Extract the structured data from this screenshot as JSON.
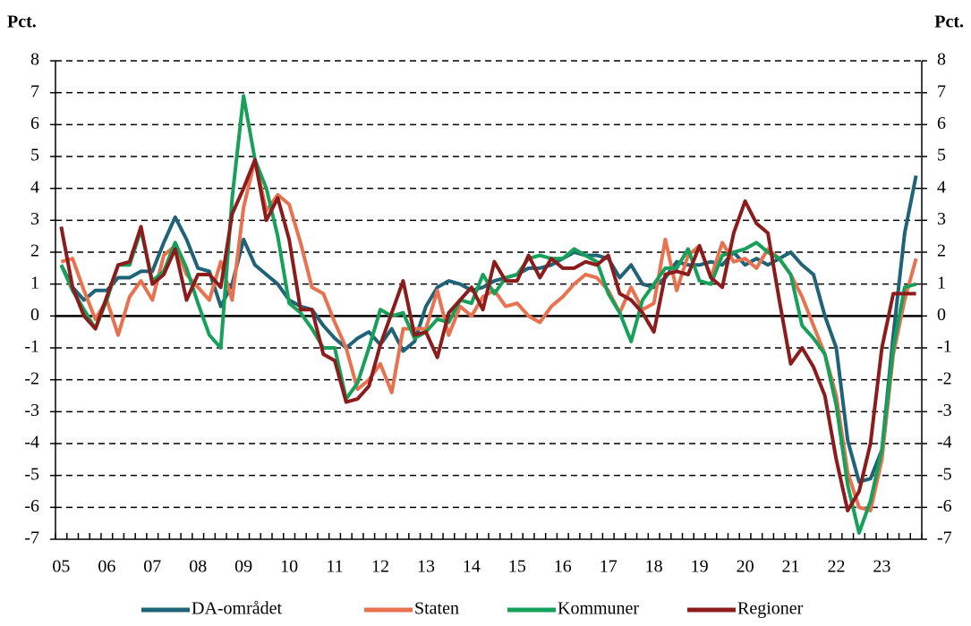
{
  "chart_data": {
    "type": "line",
    "ylabel": "Pct.",
    "y2label": "Pct.",
    "categories": [
      "05",
      null,
      null,
      null,
      "06",
      null,
      null,
      null,
      "07",
      null,
      null,
      null,
      "08",
      null,
      null,
      null,
      "09",
      null,
      null,
      null,
      "10",
      null,
      null,
      null,
      "11",
      null,
      null,
      null,
      "12",
      null,
      null,
      null,
      "13",
      null,
      null,
      null,
      "14",
      null,
      null,
      null,
      "15",
      null,
      null,
      null,
      "16",
      null,
      null,
      null,
      "17",
      null,
      null,
      null,
      "18",
      null,
      null,
      null,
      "19",
      null,
      null,
      null,
      "20",
      null,
      null,
      null,
      "21",
      null,
      null,
      null,
      "22",
      null,
      null,
      null,
      "23",
      null,
      null,
      null
    ],
    "series": [
      {
        "name": "DA-området",
        "color": "#1e6378",
        "values": [
          1.6,
          0.9,
          0.5,
          0.8,
          0.8,
          1.2,
          1.2,
          1.4,
          1.4,
          2.3,
          3.1,
          2.4,
          1.5,
          1.4,
          0.3,
          1.0,
          2.4,
          1.6,
          1.3,
          1.0,
          0.5,
          0.3,
          0.2,
          -0.3,
          -0.7,
          -1.0,
          -0.7,
          -0.5,
          -0.9,
          -0.4,
          -1.1,
          -0.8,
          0.3,
          0.9,
          1.1,
          1.0,
          0.8,
          0.9,
          1.1,
          1.2,
          1.3,
          1.5,
          1.5,
          1.6,
          1.8,
          2.0,
          1.9,
          1.9,
          1.8,
          1.2,
          1.6,
          1.0,
          0.9,
          1.2,
          1.7,
          1.6,
          1.6,
          1.7,
          1.6,
          2.0,
          1.6,
          1.8,
          1.6,
          1.8,
          2.0,
          1.6,
          1.3,
          0.0,
          -1.0,
          -3.9,
          -5.2,
          -5.1,
          -4.2,
          -0.6,
          2.6,
          4.4
        ]
      },
      {
        "name": "Staten",
        "color": "#e8714f",
        "values": [
          1.7,
          1.8,
          0.8,
          -0.1,
          0.5,
          -0.6,
          0.6,
          1.1,
          0.5,
          1.9,
          2.2,
          1.3,
          0.9,
          0.5,
          1.7,
          0.5,
          3.4,
          4.9,
          3.3,
          3.8,
          3.5,
          2.3,
          0.9,
          0.7,
          -0.2,
          -1.0,
          -2.3,
          -2.0,
          -1.5,
          -2.4,
          -0.4,
          -0.4,
          -0.4,
          0.8,
          -0.6,
          0.3,
          0.0,
          0.6,
          0.8,
          0.3,
          0.4,
          0.0,
          -0.2,
          0.3,
          0.6,
          1.0,
          1.3,
          1.2,
          0.8,
          0.1,
          0.9,
          0.2,
          0.4,
          2.4,
          0.8,
          1.9,
          2.2,
          1.2,
          2.3,
          1.7,
          1.8,
          1.5,
          2.1,
          1.8,
          1.3,
          0.6,
          -0.3,
          -1.2,
          -2.5,
          -4.9,
          -6.0,
          -6.1,
          -4.5,
          -1.2,
          0.5,
          1.8
        ]
      },
      {
        "name": "Kommuner",
        "color": "#16a05a",
        "values": [
          1.6,
          0.8,
          0.2,
          -0.4,
          0.5,
          1.6,
          1.6,
          2.7,
          1.1,
          1.4,
          2.3,
          1.5,
          0.4,
          -0.6,
          -1.0,
          3.7,
          6.9,
          4.9,
          4.0,
          2.5,
          0.4,
          0.1,
          -0.4,
          -1.0,
          -1.0,
          -2.6,
          -2.1,
          -1.0,
          0.2,
          0.0,
          0.1,
          -0.7,
          -0.5,
          -0.1,
          -0.2,
          0.5,
          0.4,
          1.3,
          0.7,
          1.2,
          1.3,
          1.8,
          1.9,
          1.8,
          1.8,
          2.1,
          1.9,
          1.7,
          0.7,
          0.1,
          -0.8,
          0.5,
          1.0,
          1.5,
          1.5,
          2.1,
          1.1,
          1.0,
          1.9,
          2.0,
          2.1,
          2.3,
          2.0,
          1.8,
          1.3,
          -0.3,
          -0.7,
          -1.2,
          -2.8,
          -5.3,
          -6.8,
          -5.8,
          -4.2,
          -1.0,
          0.9,
          1.0
        ]
      },
      {
        "name": "Regioner",
        "color": "#8c1c1c",
        "values": [
          2.8,
          0.9,
          0.0,
          -0.4,
          0.6,
          1.6,
          1.7,
          2.8,
          1.0,
          1.3,
          2.1,
          0.5,
          1.3,
          1.3,
          0.9,
          3.2,
          4.0,
          4.9,
          3.0,
          3.7,
          2.4,
          0.2,
          0.2,
          -1.2,
          -1.4,
          -2.7,
          -2.6,
          -2.2,
          -0.9,
          0.1,
          1.1,
          -0.6,
          -0.5,
          -1.3,
          0.1,
          0.5,
          0.9,
          0.2,
          1.7,
          1.1,
          1.1,
          1.9,
          1.2,
          1.8,
          1.5,
          1.5,
          1.7,
          1.6,
          1.9,
          0.7,
          0.5,
          0.1,
          -0.5,
          1.3,
          1.4,
          1.3,
          2.2,
          1.2,
          0.9,
          2.6,
          3.6,
          2.9,
          2.6,
          0.5,
          -1.5,
          -1.0,
          -1.6,
          -2.5,
          -4.5,
          -6.1,
          -5.5,
          -4.0,
          -1.0,
          0.7,
          0.7,
          0.7
        ]
      }
    ],
    "ylim": [
      -7,
      8
    ],
    "yticks": [
      -7,
      -6,
      -5,
      -4,
      -3,
      -2,
      -1,
      0,
      1,
      2,
      3,
      4,
      5,
      6,
      7,
      8
    ],
    "grid": true
  }
}
